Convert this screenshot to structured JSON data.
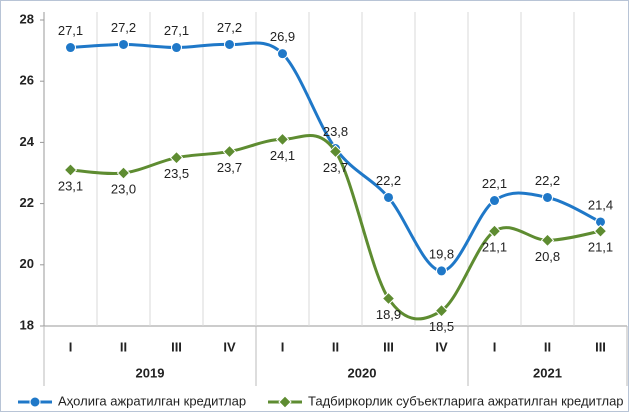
{
  "chart_data": {
    "type": "line",
    "categories": [
      "I",
      "II",
      "III",
      "IV",
      "I",
      "II",
      "III",
      "IV",
      "I",
      "II",
      "III"
    ],
    "groups": [
      {
        "name": "2019",
        "count": 4
      },
      {
        "name": "2020",
        "count": 4
      },
      {
        "name": "2021",
        "count": 3
      }
    ],
    "series": [
      {
        "name": "Аҳолига ажратилган кредитлар",
        "color": "#1f78c8",
        "marker": "circle",
        "values": [
          27.1,
          27.2,
          27.1,
          27.2,
          26.9,
          23.8,
          22.2,
          19.8,
          22.1,
          22.2,
          21.4
        ],
        "value_labels": [
          "27,1",
          "27,2",
          "27,1",
          "27,2",
          "26,9",
          "23,8",
          "22,2",
          "19,8",
          "22,1",
          "22,2",
          "21,4"
        ]
      },
      {
        "name": "Тадбиркорлик субъектларига ажратилган кредитлар",
        "color": "#5e8c31",
        "marker": "diamond",
        "values": [
          23.1,
          23.0,
          23.5,
          23.7,
          24.1,
          23.7,
          18.9,
          18.5,
          21.1,
          20.8,
          21.1
        ],
        "value_labels": [
          "23,1",
          "23,0",
          "23,5",
          "23,7",
          "24,1",
          "23,7",
          "18,9",
          "18,5",
          "21,1",
          "20,8",
          "21,1"
        ]
      }
    ],
    "ylim": [
      18,
      28
    ],
    "yticks": [
      18,
      20,
      22,
      24,
      26,
      28
    ],
    "grid": "vertical",
    "smooth": true,
    "legend": "bottom"
  }
}
